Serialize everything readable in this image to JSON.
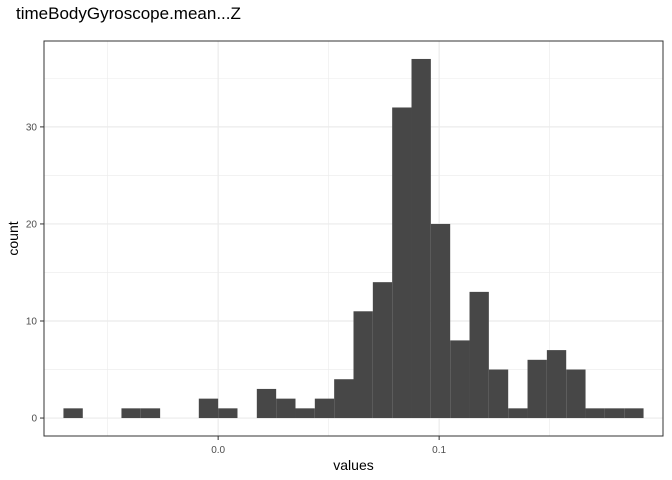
{
  "chart_data": {
    "type": "bar",
    "title": "timeBodyGyroscope.mean...Z",
    "xlabel": "values",
    "ylabel": "count",
    "bin_width": 0.00875,
    "bins": [
      {
        "x0": -0.07,
        "x1": -0.06125,
        "count": 1
      },
      {
        "x0": -0.06125,
        "x1": -0.0525,
        "count": 0
      },
      {
        "x0": -0.0525,
        "x1": -0.04375,
        "count": 0
      },
      {
        "x0": -0.04375,
        "x1": -0.035,
        "count": 1
      },
      {
        "x0": -0.035,
        "x1": -0.02625,
        "count": 1
      },
      {
        "x0": -0.02625,
        "x1": -0.0175,
        "count": 0
      },
      {
        "x0": -0.0175,
        "x1": -0.00875,
        "count": 0
      },
      {
        "x0": -0.00875,
        "x1": 0.0,
        "count": 2
      },
      {
        "x0": 0.0,
        "x1": 0.00875,
        "count": 1
      },
      {
        "x0": 0.00875,
        "x1": 0.0175,
        "count": 0
      },
      {
        "x0": 0.0175,
        "x1": 0.02625,
        "count": 3
      },
      {
        "x0": 0.02625,
        "x1": 0.035,
        "count": 2
      },
      {
        "x0": 0.035,
        "x1": 0.04375,
        "count": 1
      },
      {
        "x0": 0.04375,
        "x1": 0.0525,
        "count": 2
      },
      {
        "x0": 0.0525,
        "x1": 0.06125,
        "count": 4
      },
      {
        "x0": 0.06125,
        "x1": 0.07,
        "count": 11
      },
      {
        "x0": 0.07,
        "x1": 0.07875,
        "count": 14
      },
      {
        "x0": 0.07875,
        "x1": 0.0875,
        "count": 32
      },
      {
        "x0": 0.0875,
        "x1": 0.09625,
        "count": 37
      },
      {
        "x0": 0.09625,
        "x1": 0.105,
        "count": 20
      },
      {
        "x0": 0.105,
        "x1": 0.11375,
        "count": 8
      },
      {
        "x0": 0.11375,
        "x1": 0.1225,
        "count": 13
      },
      {
        "x0": 0.1225,
        "x1": 0.13125,
        "count": 5
      },
      {
        "x0": 0.13125,
        "x1": 0.14,
        "count": 1
      },
      {
        "x0": 0.14,
        "x1": 0.14875,
        "count": 6
      },
      {
        "x0": 0.14875,
        "x1": 0.1575,
        "count": 7
      },
      {
        "x0": 0.1575,
        "x1": 0.16625,
        "count": 5
      },
      {
        "x0": 0.16625,
        "x1": 0.175,
        "count": 1
      },
      {
        "x0": 0.175,
        "x1": 0.18375,
        "count": 1
      },
      {
        "x0": 0.18375,
        "x1": 0.1925,
        "count": 1
      }
    ],
    "xlim": [
      -0.0788,
      0.2013
    ],
    "ylim": [
      -1.85,
      38.85
    ],
    "x_ticks": [
      0.0,
      0.1
    ],
    "x_tick_labels": [
      "0.0",
      "0.1"
    ],
    "y_ticks": [
      0,
      10,
      20,
      30
    ],
    "y_tick_labels": [
      "0",
      "10",
      "20",
      "30"
    ],
    "grid": true,
    "bar_color": "#474747",
    "panel_border_color": "#333333",
    "grid_color": "#ebebeb"
  }
}
